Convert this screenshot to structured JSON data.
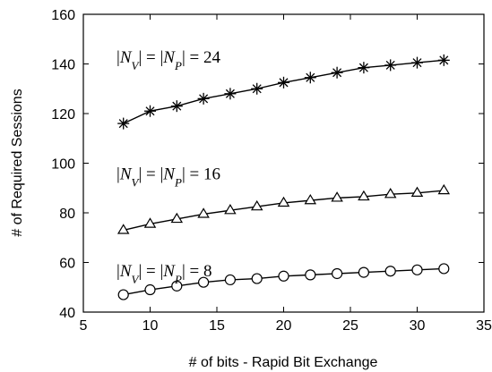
{
  "chart_data": {
    "type": "line",
    "title": "",
    "xlabel": "# of bits - Rapid Bit Exchange",
    "ylabel": "# of Required Sessions",
    "xlim": [
      5,
      35
    ],
    "ylim": [
      40,
      160
    ],
    "xticks": [
      5,
      10,
      15,
      20,
      25,
      30,
      35
    ],
    "yticks": [
      40,
      60,
      80,
      100,
      120,
      140,
      160
    ],
    "grid": false,
    "legend": "none",
    "x": [
      8,
      10,
      12,
      14,
      16,
      18,
      20,
      22,
      24,
      26,
      28,
      30,
      32
    ],
    "series": [
      {
        "marker": "star",
        "label": "|N_V| = |N_P| = 24",
        "values": [
          116,
          121,
          123,
          126,
          128,
          130,
          132.5,
          134.5,
          136.5,
          138.5,
          139.5,
          140.5,
          141.5
        ]
      },
      {
        "marker": "triangle",
        "label": "|N_V| = |N_P| = 16",
        "values": [
          73,
          75.5,
          77.5,
          79.5,
          81,
          82.5,
          84,
          85,
          86,
          86.5,
          87.5,
          88,
          89
        ]
      },
      {
        "marker": "circle",
        "label": "|N_V| = |N_P| = 8",
        "values": [
          47,
          49,
          50.5,
          52,
          53,
          53.5,
          54.5,
          55,
          55.5,
          56,
          56.5,
          57,
          57.5
        ]
      }
    ],
    "colors": {
      "line": "#000000",
      "axis": "#000000"
    }
  }
}
